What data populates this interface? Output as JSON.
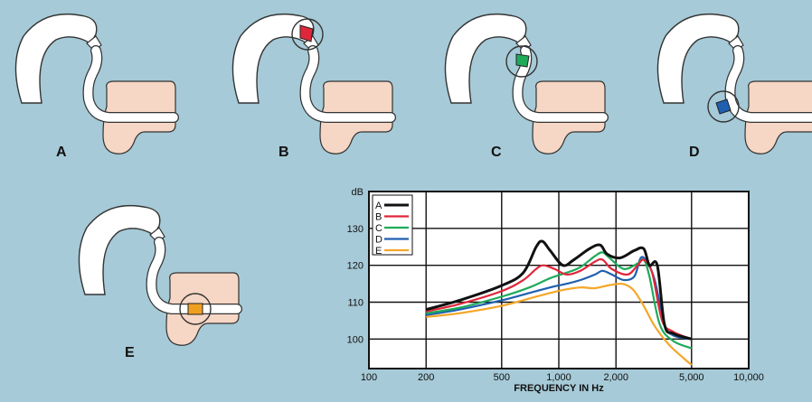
{
  "figure": {
    "panels": [
      {
        "label": "A",
        "color": ""
      },
      {
        "label": "B",
        "color": "#e0263a"
      },
      {
        "label": "C",
        "color": "#1faa5a"
      },
      {
        "label": "D",
        "color": "#1f5fb0"
      },
      {
        "label": "E",
        "color": "#f0a020"
      }
    ],
    "skin_color": "#f6d6c4",
    "earhook_color": "#ffffff",
    "background_color": "#a6cad7"
  },
  "chart_data": {
    "type": "line",
    "title": "",
    "xlabel": "FREQUENCY IN Hz",
    "ylabel": "dB",
    "xscale": "log",
    "xlim": [
      100,
      10000
    ],
    "ylim": [
      92,
      140
    ],
    "x_ticks": [
      100,
      200,
      500,
      1000,
      2000,
      5000,
      10000
    ],
    "x_tick_labels": [
      "100",
      "200",
      "500",
      "1,000",
      "2,000",
      "5,000",
      "10,000"
    ],
    "y_ticks": [
      100,
      110,
      120,
      130
    ],
    "y_tick_labels": [
      "100",
      "110",
      "120",
      "130"
    ],
    "grid": true,
    "legend_position": "top-left",
    "series": [
      {
        "name": "A",
        "color": "#111111",
        "x": [
          200,
          300,
          500,
          650,
          760,
          820,
          900,
          1050,
          1200,
          1450,
          1650,
          1800,
          2100,
          2500,
          2800,
          3000,
          3300,
          3600,
          4000,
          5000
        ],
        "y": [
          108,
          110.5,
          114.5,
          118,
          125,
          126.5,
          124,
          120,
          121.5,
          124.5,
          125.5,
          123,
          122,
          124,
          124.5,
          120,
          120,
          104,
          101.5,
          100
        ]
      },
      {
        "name": "B",
        "color": "#e0263a",
        "x": [
          200,
          300,
          500,
          650,
          760,
          830,
          950,
          1100,
          1300,
          1550,
          1700,
          1900,
          2300,
          2600,
          2800,
          3100,
          3500,
          4000,
          5000
        ],
        "y": [
          107.5,
          109.5,
          113,
          116,
          119,
          120,
          119,
          117.5,
          118.5,
          121,
          121.5,
          119,
          117.5,
          120,
          121.5,
          118,
          105,
          102,
          100
        ]
      },
      {
        "name": "C",
        "color": "#1faa5a",
        "x": [
          200,
          300,
          500,
          700,
          900,
          1100,
          1300,
          1550,
          1700,
          1850,
          2200,
          2600,
          2800,
          3000,
          3400,
          4000,
          5000
        ],
        "y": [
          107,
          108.5,
          111.5,
          114,
          116.5,
          118,
          119.5,
          122.5,
          123.5,
          122,
          119,
          120.5,
          121.5,
          117,
          104,
          99.5,
          97.5
        ]
      },
      {
        "name": "D",
        "color": "#1f5fb0",
        "x": [
          200,
          300,
          500,
          700,
          900,
          1100,
          1300,
          1550,
          1700,
          1900,
          2200,
          2500,
          2700,
          2900,
          3200,
          3600,
          4000,
          5000
        ],
        "y": [
          106.5,
          108,
          110.5,
          112.5,
          114,
          115,
          116,
          117.5,
          118.5,
          117.5,
          116,
          117,
          122,
          121,
          116,
          104,
          101,
          100
        ]
      },
      {
        "name": "E",
        "color": "#f4a72a",
        "x": [
          200,
          300,
          500,
          700,
          900,
          1100,
          1300,
          1550,
          1800,
          2100,
          2300,
          2500,
          2800,
          3200,
          3800,
          4500,
          5000
        ],
        "y": [
          106,
          107,
          109,
          111,
          112.5,
          113.5,
          114,
          113.8,
          114.5,
          115,
          114.5,
          113,
          109,
          103.5,
          98.5,
          95,
          93
        ]
      }
    ]
  }
}
